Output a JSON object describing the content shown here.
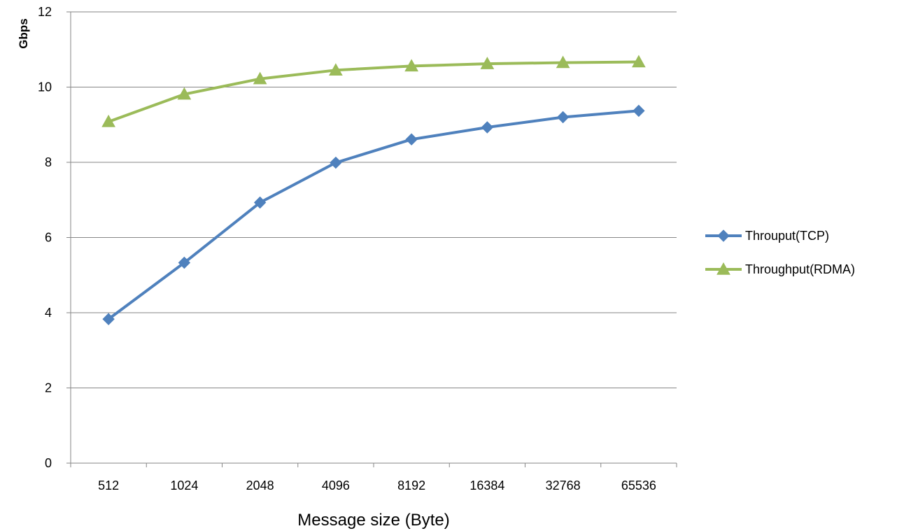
{
  "chart_data": {
    "type": "line",
    "categories": [
      "512",
      "1024",
      "2048",
      "4096",
      "8192",
      "16384",
      "32768",
      "65536"
    ],
    "series": [
      {
        "name": "Throuput(TCP)",
        "values": [
          3.83,
          5.33,
          6.93,
          7.99,
          8.61,
          8.93,
          9.2,
          9.37
        ],
        "color": "#4F81BD",
        "marker": "diamond"
      },
      {
        "name": "Throughput(RDMA)",
        "values": [
          9.08,
          9.81,
          10.22,
          10.45,
          10.56,
          10.62,
          10.65,
          10.67
        ],
        "color": "#9BBB59",
        "marker": "triangle"
      }
    ],
    "yticks": [
      "0",
      "2",
      "4",
      "6",
      "8",
      "10",
      "12"
    ],
    "ylim": [
      0,
      12
    ],
    "xlabel": "Message size (Byte)",
    "ylabel": "Gbps",
    "grid": "horizontal",
    "legend_position": "right"
  }
}
